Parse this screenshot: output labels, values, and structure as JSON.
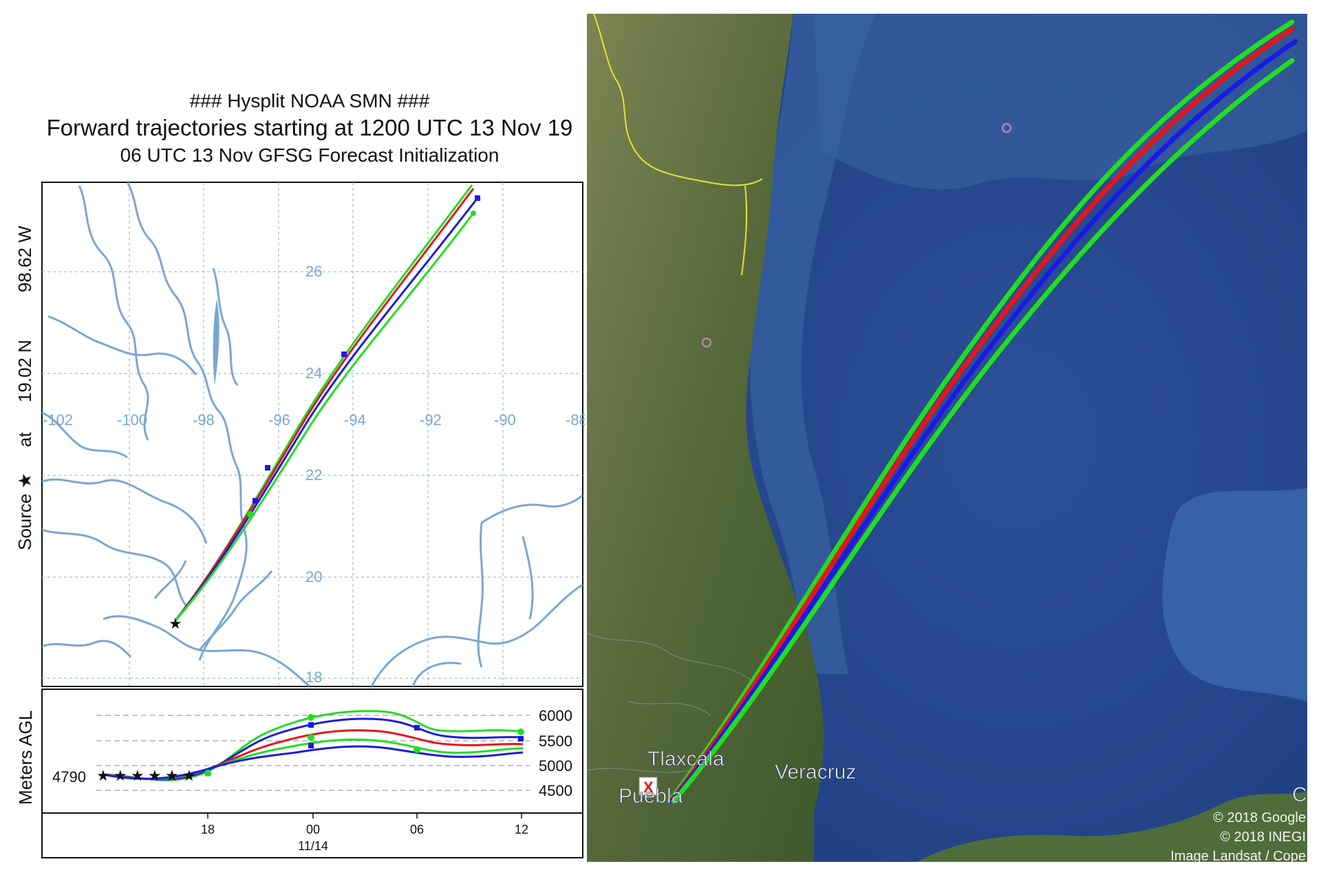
{
  "titles": {
    "line1": "### Hysplit NOAA  SMN ###",
    "line2": "Forward trajectories starting at 1200 UTC 13 Nov 19",
    "line3": "06 UTC 13 Nov    GFSG  Forecast Initialization"
  },
  "source_label": {
    "source": "Source ★",
    "at": "at",
    "lat": "19.02 N",
    "lon": "98.62 W"
  },
  "map_axes": {
    "lon_ticks": [
      "-102",
      "-100",
      "-98",
      "-96",
      "-94",
      "-92",
      "-90",
      "-88"
    ],
    "lat_ticks": [
      "26",
      "24",
      "22",
      "20",
      "18"
    ],
    "grid_color": "#9cbcd8",
    "coast_color": "#7aa6d3"
  },
  "height_panel": {
    "ylabel": "Meters AGL",
    "start_height": "4790",
    "y_ticks": [
      "6000",
      "5500",
      "5000",
      "4500"
    ],
    "x_ticks": [
      "18",
      "00",
      "06",
      "12"
    ],
    "date_label": "11/14"
  },
  "trajectory_colors": {
    "red": "#e8141a",
    "blue": "#1a1ae6",
    "green": "#22dd22"
  },
  "satellite": {
    "labels": {
      "tlaxcala": "Tlaxcala",
      "veracruz": "Veracruz",
      "puebla": "Puebla",
      "edge": "C"
    },
    "source_marker": "X",
    "attribution": [
      "© 2018 Google",
      "© 2018 INEGI",
      "Image Landsat / Cope"
    ],
    "ocean_color": "#2a4d8f",
    "land_color": "#5a6b3e",
    "border_color": "#e6e233"
  }
}
